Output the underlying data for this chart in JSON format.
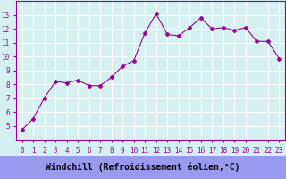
{
  "x": [
    0,
    1,
    2,
    3,
    4,
    5,
    6,
    7,
    8,
    9,
    10,
    11,
    12,
    13,
    14,
    15,
    16,
    17,
    18,
    19,
    20,
    21,
    22,
    23
  ],
  "y": [
    4.7,
    5.5,
    7.0,
    8.2,
    8.1,
    8.3,
    7.9,
    7.9,
    8.5,
    9.3,
    9.7,
    11.7,
    13.1,
    11.6,
    11.5,
    12.1,
    12.8,
    12.0,
    12.1,
    11.9,
    12.1,
    11.1,
    11.1,
    9.85
  ],
  "line_color": "#990099",
  "marker": "D",
  "marker_size": 2.5,
  "bg_color": "#d4f0f0",
  "grid_color": "#aadddd",
  "xlabel": "Windchill (Refroidissement éolien,°C)",
  "xlabel_bg": "#9999ee",
  "ylim": [
    4,
    14
  ],
  "xlim": [
    -0.5,
    23.5
  ],
  "yticks": [
    5,
    6,
    7,
    8,
    9,
    10,
    11,
    12,
    13
  ],
  "xtick_labels": [
    "0",
    "1",
    "2",
    "3",
    "4",
    "5",
    "6",
    "7",
    "8",
    "9",
    "10",
    "11",
    "12",
    "13",
    "14",
    "15",
    "16",
    "17",
    "18",
    "19",
    "20",
    "21",
    "22",
    "23"
  ],
  "tick_color": "#990099",
  "tick_fontsize": 5.5,
  "xlabel_fontsize": 7.0,
  "spine_color": "#990099"
}
